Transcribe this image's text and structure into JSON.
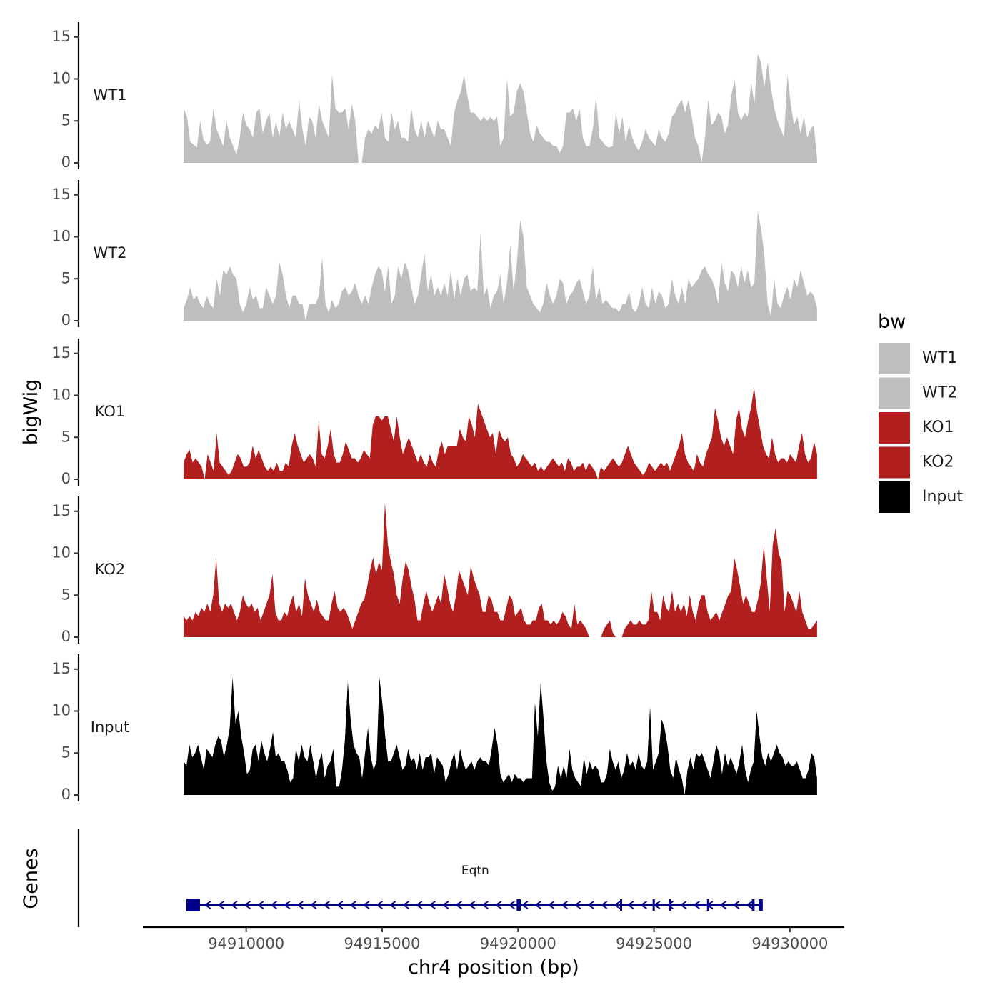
{
  "chart_data": {
    "type": "area",
    "ylabel": "bigWig",
    "xlabel": "chr4 position (bp)",
    "genes_label": "Genes",
    "xlim": [
      94906200,
      94932000
    ],
    "ylim": [
      0,
      16
    ],
    "yticks": [
      0,
      5,
      10,
      15
    ],
    "xticks": [
      94910000,
      94915000,
      94920000,
      94925000,
      94930000
    ],
    "legend": {
      "title": "bw",
      "position": "right",
      "entries": [
        {
          "label": "WT1",
          "color": "#bebebe"
        },
        {
          "label": "WT2",
          "color": "#bebebe"
        },
        {
          "label": "KO1",
          "color": "#b21f1f"
        },
        {
          "label": "KO2",
          "color": "#b21f1f"
        },
        {
          "label": "Input",
          "color": "#000000"
        }
      ]
    },
    "tracks": [
      {
        "name": "WT1",
        "color": "#bebebe",
        "x_start": 94907700,
        "x_end": 94931000,
        "values": [
          6.5,
          5.5,
          2.5,
          2.2,
          1.8,
          5,
          2.8,
          2.2,
          2.5,
          6.5,
          4,
          3,
          2,
          5,
          3,
          2,
          1,
          3,
          6,
          4.5,
          4,
          3,
          6,
          6.5,
          3.5,
          5,
          6,
          3,
          5,
          3,
          6,
          4,
          5,
          4,
          3,
          7.5,
          4,
          2,
          5.5,
          5,
          3,
          7,
          5,
          4,
          3,
          10.5,
          6.5,
          6,
          6,
          6.5,
          4,
          7,
          5,
          0,
          0,
          3,
          4,
          3.5,
          4.5,
          4,
          6,
          3,
          2.5,
          6,
          4,
          5,
          3,
          3,
          2.5,
          6.5,
          4,
          3,
          5,
          3,
          5,
          4,
          3,
          5,
          4,
          4,
          3,
          2,
          6,
          7.5,
          8.5,
          10.5,
          8,
          6,
          6,
          5.5,
          5,
          5.5,
          5,
          5.5,
          5,
          5.5,
          2,
          3,
          10,
          5.5,
          6,
          8.5,
          9.5,
          8.5,
          6,
          3.5,
          2.5,
          4.5,
          3.5,
          3,
          2.5,
          2.5,
          2,
          2,
          1.2,
          2,
          6,
          6,
          6.5,
          5,
          6.5,
          3,
          2,
          2,
          4,
          8,
          3,
          2.5,
          2,
          1.8,
          2,
          6,
          3.5,
          5.5,
          2.5,
          4.5,
          3,
          2,
          1.5,
          2.5,
          4,
          3,
          2.5,
          2,
          4,
          3,
          2.5,
          3.5,
          5.5,
          6,
          7,
          7.5,
          6,
          7.5,
          5.5,
          3,
          2,
          0,
          3,
          7.5,
          4.5,
          5,
          6,
          5.5,
          3.5,
          4.5,
          8,
          10,
          6,
          5,
          6,
          5.5,
          9.5,
          7,
          13,
          12,
          9,
          12,
          9,
          6.5,
          5,
          4,
          3,
          10.5,
          7,
          4.5,
          5.5,
          3.5,
          5.5,
          3,
          4,
          4.5,
          0.5
        ]
      },
      {
        "name": "WT2",
        "color": "#bebebe",
        "x_start": 94907700,
        "x_end": 94931000,
        "values": [
          1.5,
          2.5,
          4,
          2.5,
          3,
          2,
          1.5,
          3,
          2,
          1.5,
          5,
          3,
          6,
          5.5,
          6.5,
          5.5,
          5,
          2,
          1,
          2,
          4,
          2.5,
          3,
          1.5,
          1.5,
          4,
          3,
          2,
          3,
          7,
          5.5,
          3,
          1.5,
          3,
          3,
          2,
          2,
          0,
          2,
          2,
          2,
          3,
          7.5,
          2,
          1,
          2.5,
          1.5,
          2,
          3.5,
          4,
          3,
          3.5,
          4.5,
          3,
          2,
          3,
          2,
          4,
          5.5,
          6.5,
          6,
          3.5,
          6.5,
          2,
          3,
          6.5,
          5,
          7,
          6,
          4,
          2,
          3,
          5.5,
          8,
          3.5,
          5.5,
          3,
          4,
          3,
          4.5,
          3,
          6,
          2.5,
          5,
          3,
          5,
          5.5,
          3.5,
          4,
          3.5,
          10.5,
          3,
          4,
          1.5,
          3,
          3.5,
          5.5,
          2,
          4.5,
          9,
          3.5,
          7,
          12,
          10,
          4,
          3,
          2,
          1.5,
          1,
          2,
          4.5,
          3,
          2,
          3,
          5,
          4.5,
          2,
          3,
          3.5,
          4.5,
          5,
          3.5,
          2,
          3,
          6.5,
          2.5,
          4,
          2,
          2.5,
          2,
          1.5,
          1.5,
          1,
          2,
          2,
          3.5,
          1.5,
          1,
          2,
          4,
          2,
          1.5,
          4,
          2,
          3.5,
          3,
          1.5,
          2,
          5,
          3,
          2,
          4,
          2,
          5,
          4,
          4.5,
          5,
          6,
          6.5,
          5.5,
          5,
          4,
          2,
          7,
          4.5,
          3.5,
          6,
          5.5,
          4,
          6.5,
          4.5,
          6,
          4,
          4.5,
          13,
          11,
          8,
          2,
          0.5,
          5,
          2,
          1.5,
          3,
          4,
          2.5,
          5,
          4,
          6,
          4.5,
          3,
          3.5,
          3,
          1.5
        ]
      },
      {
        "name": "KO1",
        "color": "#b21f1f",
        "x_start": 94907700,
        "x_end": 94931000,
        "values": [
          2,
          3,
          3.5,
          2,
          2.5,
          2,
          1.5,
          0,
          3,
          2,
          1,
          5.5,
          2,
          1.5,
          1,
          0.5,
          1,
          2,
          3,
          2.5,
          1.5,
          1.5,
          2,
          4,
          2.5,
          3.5,
          2.5,
          1.5,
          1,
          1.5,
          1,
          2,
          1,
          1,
          2,
          1.5,
          4,
          5.5,
          4,
          3,
          2,
          2.5,
          3,
          2.5,
          1.5,
          7,
          3,
          2.5,
          4,
          6,
          3,
          2,
          2,
          3,
          4.5,
          3.5,
          2.5,
          2.5,
          2,
          2.5,
          3.5,
          3,
          2.5,
          6.5,
          7.5,
          7.5,
          7,
          7.5,
          7.5,
          6,
          4.5,
          7.5,
          5,
          3,
          4,
          5,
          4,
          3,
          2,
          3,
          2,
          1.5,
          3,
          2,
          1.5,
          3.5,
          4.5,
          3,
          4,
          4,
          4,
          4,
          6,
          5,
          4.5,
          7.5,
          6.5,
          5,
          9,
          8,
          7,
          6,
          5,
          5.5,
          3,
          6,
          5,
          4.5,
          5,
          3,
          2.5,
          1.5,
          2,
          3,
          2.5,
          2,
          1.5,
          2,
          1,
          1.5,
          1,
          1.5,
          2,
          2.5,
          2,
          1.5,
          2,
          1,
          2.5,
          2,
          1,
          1.5,
          1.5,
          2,
          1,
          2,
          1.5,
          1,
          0,
          1.5,
          1,
          1.5,
          2,
          2.5,
          2,
          1.5,
          2,
          3,
          4,
          3,
          2,
          1.5,
          1,
          0.5,
          1,
          2,
          1.5,
          1,
          1.5,
          2,
          1.5,
          2,
          1,
          2,
          3,
          4,
          5.5,
          3,
          2,
          1.5,
          1,
          3,
          2,
          1.5,
          3,
          4,
          5,
          8.5,
          7,
          5,
          4,
          5,
          4,
          3,
          7,
          8.5,
          6,
          5,
          7,
          8.5,
          11,
          8,
          6,
          4,
          3,
          2.5,
          5,
          3,
          2,
          2.5,
          2.5,
          2,
          3,
          2.5,
          2,
          4,
          5.5,
          3,
          2,
          2.5,
          4.5,
          3
        ]
      },
      {
        "name": "KO2",
        "color": "#b21f1f",
        "x_start": 94907700,
        "x_end": 94931000,
        "values": [
          2.5,
          2,
          2.5,
          2,
          3,
          2.5,
          3.5,
          3,
          4,
          3,
          5,
          9.5,
          4,
          3,
          4,
          3.5,
          4,
          3,
          2,
          3,
          5,
          4,
          3.5,
          4,
          3,
          3.5,
          2,
          3,
          4,
          5,
          7.5,
          3,
          2,
          2,
          3,
          2.5,
          4,
          5,
          3,
          4,
          2.5,
          7,
          5,
          4,
          3,
          4.5,
          3,
          2.5,
          2,
          2,
          4,
          5.5,
          3.5,
          3,
          3.5,
          3,
          2,
          1,
          2,
          3,
          4,
          4.5,
          6,
          8,
          9.5,
          7.5,
          9,
          8,
          16,
          11,
          9,
          7.5,
          5,
          4,
          7,
          9,
          8,
          6,
          4.5,
          2,
          2,
          4,
          5.5,
          4,
          3,
          4,
          5,
          4,
          7.5,
          6,
          4,
          3,
          5,
          8,
          7,
          6,
          5,
          8.5,
          7,
          6,
          5,
          3,
          3,
          5,
          4.5,
          3,
          3,
          2,
          2,
          3.5,
          5,
          4.5,
          2.5,
          3,
          3.5,
          2,
          1.5,
          1.5,
          2,
          2,
          3.5,
          4,
          2,
          2,
          1.5,
          2,
          1.5,
          2,
          3,
          2.5,
          1.5,
          1,
          4,
          1.5,
          2,
          1.5,
          1,
          0,
          0,
          0,
          0,
          0,
          1,
          1.5,
          2,
          0.5,
          0,
          0,
          0,
          1,
          1.5,
          2,
          1.5,
          1.5,
          2,
          1.5,
          1.5,
          2,
          5.5,
          3,
          3,
          2,
          5,
          3.5,
          3,
          5.5,
          3,
          4,
          3,
          4,
          2.5,
          5,
          3,
          2,
          4,
          5,
          5,
          3,
          2,
          2.5,
          3,
          2,
          3,
          4,
          5,
          5.5,
          9.5,
          8,
          6,
          4,
          5,
          4,
          3,
          3,
          4.5,
          6.5,
          11,
          7,
          3,
          11,
          13,
          10,
          9,
          3,
          5.5,
          5,
          4,
          3,
          5.5,
          3,
          2,
          1,
          1,
          1.5,
          2
        ]
      },
      {
        "name": "Input",
        "color": "#000000",
        "x_start": 94907700,
        "x_end": 94931000,
        "values": [
          4,
          3.5,
          6,
          4.5,
          5,
          6,
          4.5,
          3,
          5.5,
          5,
          4.5,
          6,
          7,
          6.5,
          4.5,
          6,
          8,
          14,
          8.5,
          10,
          7,
          5,
          2.5,
          3,
          5.5,
          6,
          4,
          6.5,
          5,
          4,
          5.5,
          7.5,
          4.5,
          5,
          4,
          4,
          3,
          1.5,
          2,
          5.5,
          4,
          6,
          4.5,
          4,
          6,
          4,
          2,
          4,
          5,
          2,
          3.5,
          4,
          5.5,
          1,
          1,
          3,
          6.5,
          13.5,
          9,
          6,
          5,
          4.5,
          2,
          5,
          8,
          4.5,
          3,
          4,
          14,
          11,
          7,
          4,
          4,
          5,
          6,
          4.5,
          3,
          3.5,
          5.5,
          4,
          4.5,
          3,
          5,
          3,
          4.5,
          4.5,
          5,
          2.5,
          4.5,
          4,
          3.5,
          1.5,
          2.5,
          4,
          5,
          3,
          5.5,
          4,
          3,
          3.5,
          4,
          3,
          4,
          4.5,
          4,
          4,
          3.5,
          5.5,
          8,
          6,
          2.5,
          1.5,
          2,
          2.5,
          1.5,
          2.5,
          2,
          2,
          1.5,
          2,
          2,
          2,
          11,
          7,
          13.5,
          9,
          4,
          1.5,
          0.5,
          1,
          3.5,
          2,
          3.5,
          2,
          5.5,
          3,
          2,
          1.5,
          1,
          4.5,
          2.5,
          4,
          3,
          3.5,
          3,
          1.5,
          1.5,
          2.5,
          5.5,
          4,
          3,
          4,
          2,
          3,
          5,
          3.5,
          4,
          3,
          5,
          3.5,
          3,
          4,
          10.5,
          3,
          4,
          5,
          9,
          8,
          6,
          3,
          2,
          4.5,
          3,
          2,
          0,
          3,
          4.5,
          3,
          5,
          4.5,
          5,
          4,
          3,
          2,
          4,
          6,
          5,
          2.5,
          5,
          3.5,
          4.5,
          3.5,
          2.5,
          4,
          6,
          3,
          1.5,
          3,
          4,
          10,
          7,
          4.5,
          3.5,
          5,
          4,
          5,
          6,
          5,
          4.5,
          3.5,
          4,
          3.5,
          3.5,
          4,
          3,
          2,
          2,
          3,
          5,
          4.5,
          2
        ]
      }
    ],
    "gene": {
      "name": "Eqtn",
      "strand": "-",
      "color": "#00008b",
      "start": 94907800,
      "end": 94929000,
      "exons": [
        [
          94907800,
          94908300
        ],
        [
          94919950,
          94920100
        ],
        [
          94923750,
          94923800
        ],
        [
          94924950,
          94925000
        ],
        [
          94925550,
          94925600
        ],
        [
          94926950,
          94927000
        ],
        [
          94928600,
          94928700
        ],
        [
          94928850,
          94929000
        ]
      ]
    }
  }
}
